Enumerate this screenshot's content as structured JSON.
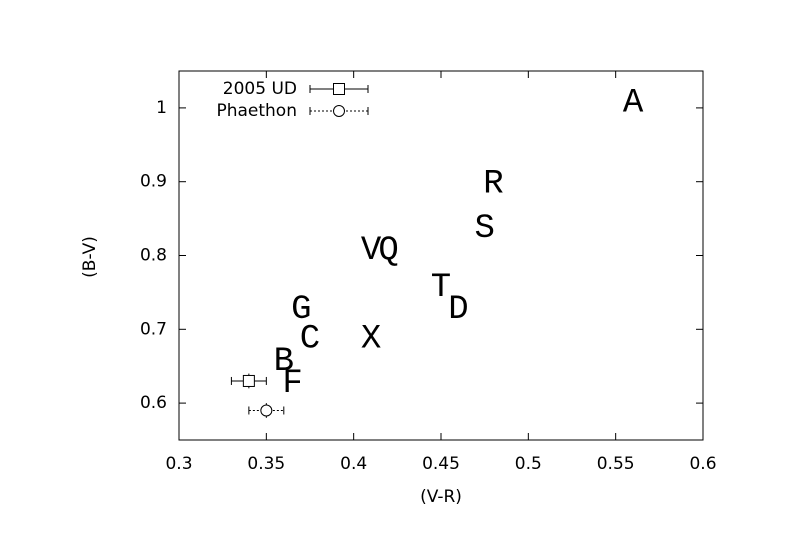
{
  "chart_data": {
    "type": "scatter",
    "xlabel": "(V-R)",
    "ylabel": "(B-V)",
    "xlim": [
      0.3,
      0.6
    ],
    "ylim": [
      0.55,
      1.05
    ],
    "xticks": [
      0.3,
      0.35,
      0.4,
      0.45,
      0.5,
      0.55,
      0.6
    ],
    "yticks": [
      0.6,
      0.7,
      0.8,
      0.9,
      1
    ],
    "legend": "upper left",
    "series": [
      {
        "name": "2005 UD",
        "marker": "square",
        "dash": false,
        "color": "#000000",
        "x": [
          0.34
        ],
        "y": [
          0.63
        ],
        "xerr": [
          0.01
        ],
        "yerr": [
          0.01
        ]
      },
      {
        "name": "Phaethon",
        "marker": "circle",
        "dash": true,
        "color": "#000000",
        "x": [
          0.35
        ],
        "y": [
          0.59
        ],
        "xerr": [
          0.01
        ],
        "yerr": [
          0.01
        ]
      }
    ],
    "points": [
      {
        "label": "A",
        "x": 0.56,
        "y": 1.01
      },
      {
        "label": "R",
        "x": 0.48,
        "y": 0.9
      },
      {
        "label": "S",
        "x": 0.475,
        "y": 0.84
      },
      {
        "label": "V",
        "x": 0.41,
        "y": 0.81
      },
      {
        "label": "Q",
        "x": 0.42,
        "y": 0.81
      },
      {
        "label": "T",
        "x": 0.45,
        "y": 0.76
      },
      {
        "label": "D",
        "x": 0.46,
        "y": 0.73
      },
      {
        "label": "G",
        "x": 0.37,
        "y": 0.73
      },
      {
        "label": "C",
        "x": 0.375,
        "y": 0.69
      },
      {
        "label": "X",
        "x": 0.41,
        "y": 0.69
      },
      {
        "label": "B",
        "x": 0.36,
        "y": 0.66
      },
      {
        "label": "F",
        "x": 0.365,
        "y": 0.63
      }
    ]
  }
}
